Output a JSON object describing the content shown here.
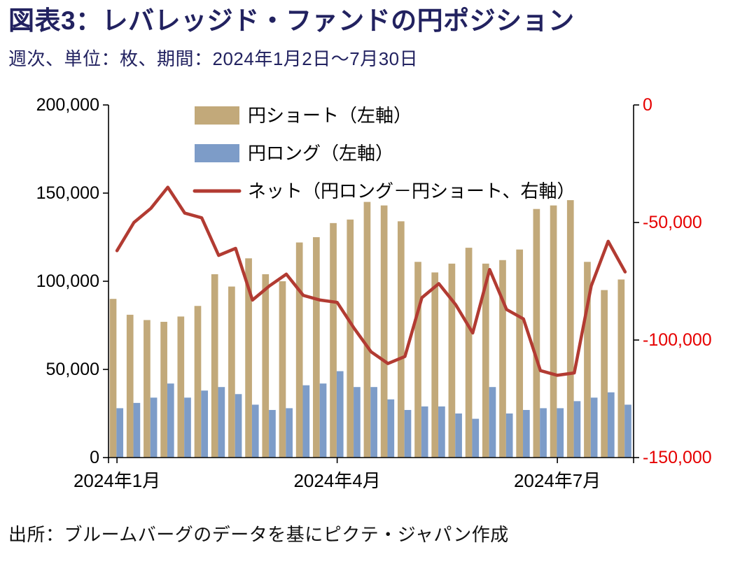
{
  "header": {
    "title": "図表3：レバレッジド・ファンドの円ポジション",
    "subtitle": "週次、単位：枚、期間：2024年1月2日～7月30日"
  },
  "footer": {
    "source": "出所：ブルームバーグのデータを基にピクテ・ジャパン作成"
  },
  "colors": {
    "title_text": "#222260",
    "short_bar": "#c2a97a",
    "long_bar": "#7d9cc8",
    "net_line": "#b23b32",
    "right_axis_text": "#e60000",
    "left_axis_text": "#000000",
    "axis_line": "#000000"
  },
  "chart_data": {
    "type": "bar",
    "subtype": "grouped-bars-with-line",
    "x_count": 31,
    "x_ticks": [
      {
        "index": 0,
        "label": "2024年1月"
      },
      {
        "index": 13,
        "label": "2024年4月"
      },
      {
        "index": 26,
        "label": "2024年7月"
      }
    ],
    "left_axis": {
      "min": 0,
      "max": 200000,
      "ticks": [
        {
          "v": 0,
          "label": "0"
        },
        {
          "v": 50000,
          "label": "50,000"
        },
        {
          "v": 100000,
          "label": "100,000"
        },
        {
          "v": 150000,
          "label": "150,000"
        },
        {
          "v": 200000,
          "label": "200,000"
        }
      ]
    },
    "right_axis": {
      "min": -150000,
      "max": 0,
      "ticks": [
        {
          "v": 0,
          "label": "0"
        },
        {
          "v": -50000,
          "label": "-50,000"
        },
        {
          "v": -100000,
          "label": "-100,000"
        },
        {
          "v": -150000,
          "label": "-150,000"
        }
      ]
    },
    "legend_position": "top-inside",
    "grid": false,
    "series": [
      {
        "name": "円ショート（左軸）",
        "type": "bar",
        "axis": "left",
        "color": "#c2a97a",
        "values": [
          90000,
          81000,
          78000,
          77000,
          80000,
          86000,
          104000,
          97000,
          113000,
          104000,
          100000,
          122000,
          125000,
          133000,
          135000,
          145000,
          143000,
          134000,
          111000,
          105000,
          110000,
          119000,
          110000,
          112000,
          118000,
          141000,
          143000,
          146000,
          111000,
          95000,
          101000
        ]
      },
      {
        "name": "円ロング（左軸）",
        "type": "bar",
        "axis": "left",
        "color": "#7d9cc8",
        "values": [
          28000,
          31000,
          34000,
          42000,
          34000,
          38000,
          40000,
          36000,
          30000,
          27000,
          28000,
          41000,
          42000,
          49000,
          40000,
          40000,
          33000,
          27000,
          29000,
          29000,
          25000,
          22000,
          40000,
          25000,
          27000,
          28000,
          28000,
          32000,
          34000,
          37000,
          30000
        ]
      },
      {
        "name": "ネット（円ロング－円ショート、右軸）",
        "type": "line",
        "axis": "right",
        "color": "#b23b32",
        "values": [
          -62000,
          -50000,
          -44000,
          -35000,
          -46000,
          -48000,
          -64000,
          -61000,
          -83000,
          -77000,
          -72000,
          -81000,
          -83000,
          -84000,
          -95000,
          -105000,
          -110000,
          -107000,
          -82000,
          -76000,
          -85000,
          -97000,
          -70000,
          -87000,
          -91000,
          -113000,
          -115000,
          -114000,
          -77000,
          -58000,
          -71000
        ]
      }
    ]
  }
}
